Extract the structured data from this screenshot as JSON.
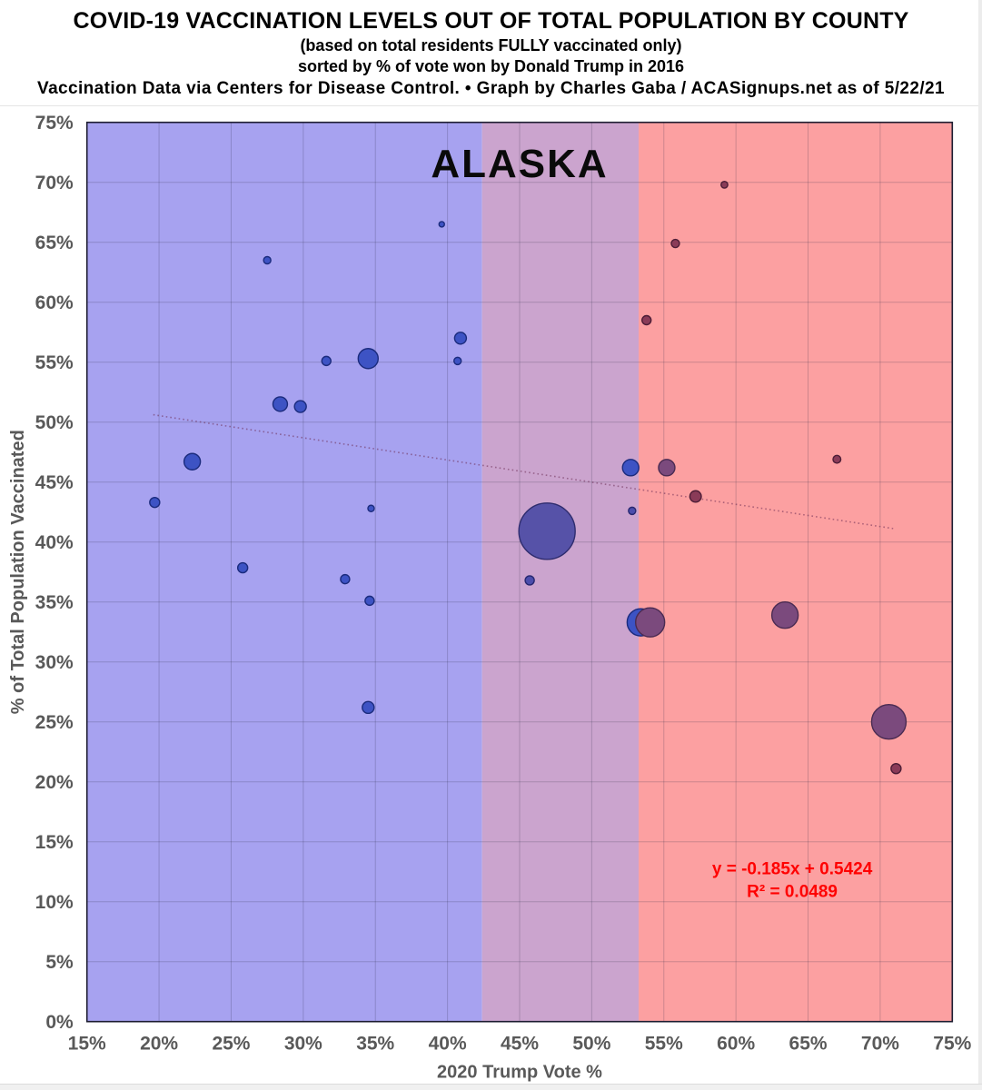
{
  "header": {
    "title": "COVID-19 VACCINATION LEVELS OUT OF TOTAL POPULATION BY COUNTY",
    "subtitle1": "(based on total residents FULLY vaccinated only)",
    "subtitle2": "sorted by % of vote won by Donald Trump in 2016",
    "credit": "Vaccination Data via Centers for Disease Control. • Graph by Charles Gaba / ACASignups.net as of 5/22/21"
  },
  "chart_data": {
    "type": "scatter",
    "title": "ALASKA",
    "xlabel": "2020 Trump Vote %",
    "ylabel": "% of Total Population Vaccinated",
    "xlim": [
      15,
      75
    ],
    "ylim": [
      0,
      75
    ],
    "grid": true,
    "tick_step": 5,
    "x_tick_labels": [
      "15%",
      "20%",
      "25%",
      "30%",
      "35%",
      "40%",
      "45%",
      "50%",
      "55%",
      "60%",
      "65%",
      "70%",
      "75%"
    ],
    "y_tick_labels": [
      "0%",
      "5%",
      "10%",
      "15%",
      "20%",
      "25%",
      "30%",
      "35%",
      "40%",
      "45%",
      "50%",
      "55%",
      "60%",
      "65%",
      "70%",
      "75%"
    ],
    "axis_label_color": "#595959",
    "gridline_color": "rgba(40,40,70,0.22)",
    "border_color": "#1c1c30",
    "bands": [
      {
        "name": "blue-lean",
        "from": 15,
        "to": 42.4,
        "color": "#A7A2F0"
      },
      {
        "name": "swing",
        "from": 42.4,
        "to": 53.25,
        "color": "#CBA4CE"
      },
      {
        "name": "red-lean",
        "from": 53.25,
        "to": 75,
        "color": "#FCA0A1"
      }
    ],
    "palette": {
      "blue": {
        "fill": "#3D53C4",
        "stroke": "#1B2B7D"
      },
      "indigo": {
        "fill": "#5652A8",
        "stroke": "#2E2C6E"
      },
      "indigoSmall": {
        "fill": "#4B4DAC",
        "stroke": "#26276F"
      },
      "plum": {
        "fill": "#7B4A7D",
        "stroke": "#4A2B52"
      },
      "maroon": {
        "fill": "#8A3B58",
        "stroke": "#4C1D36"
      }
    },
    "points": [
      {
        "x": 53.4,
        "y": 33.3,
        "r": 15,
        "c": "blue"
      },
      {
        "x": 54.05,
        "y": 33.3,
        "r": 16,
        "c": "plum"
      },
      {
        "x": 46.9,
        "y": 40.9,
        "r": 31,
        "c": "indigo"
      },
      {
        "x": 70.6,
        "y": 25.0,
        "r": 19,
        "c": "plum"
      },
      {
        "x": 63.4,
        "y": 33.9,
        "r": 14.5,
        "c": "plum"
      },
      {
        "x": 34.5,
        "y": 55.3,
        "r": 11,
        "c": "blue"
      },
      {
        "x": 22.3,
        "y": 46.7,
        "r": 9,
        "c": "blue"
      },
      {
        "x": 52.7,
        "y": 46.2,
        "r": 9,
        "c": "blue"
      },
      {
        "x": 55.2,
        "y": 46.2,
        "r": 9,
        "c": "plum"
      },
      {
        "x": 28.4,
        "y": 51.5,
        "r": 8,
        "c": "blue"
      },
      {
        "x": 29.8,
        "y": 51.3,
        "r": 6.5,
        "c": "blue"
      },
      {
        "x": 40.9,
        "y": 57.0,
        "r": 6.5,
        "c": "blue"
      },
      {
        "x": 34.5,
        "y": 26.2,
        "r": 6.5,
        "c": "blue"
      },
      {
        "x": 57.2,
        "y": 43.8,
        "r": 6.3,
        "c": "maroon"
      },
      {
        "x": 19.7,
        "y": 43.3,
        "r": 5.5,
        "c": "blue"
      },
      {
        "x": 25.8,
        "y": 37.85,
        "r": 5.5,
        "c": "blue"
      },
      {
        "x": 71.1,
        "y": 21.1,
        "r": 5.5,
        "c": "maroon"
      },
      {
        "x": 31.6,
        "y": 55.1,
        "r": 5,
        "c": "blue"
      },
      {
        "x": 32.9,
        "y": 36.9,
        "r": 5,
        "c": "blue"
      },
      {
        "x": 34.6,
        "y": 35.1,
        "r": 5,
        "c": "blue"
      },
      {
        "x": 45.7,
        "y": 36.8,
        "r": 5,
        "c": "indigoSmall"
      },
      {
        "x": 53.8,
        "y": 58.5,
        "r": 5,
        "c": "maroon"
      },
      {
        "x": 55.8,
        "y": 64.9,
        "r": 4.5,
        "c": "maroon"
      },
      {
        "x": 67.0,
        "y": 46.9,
        "r": 4.3,
        "c": "maroon"
      },
      {
        "x": 27.5,
        "y": 63.5,
        "r": 4,
        "c": "blue"
      },
      {
        "x": 40.7,
        "y": 55.1,
        "r": 4,
        "c": "blue"
      },
      {
        "x": 52.8,
        "y": 42.6,
        "r": 4,
        "c": "indigoSmall"
      },
      {
        "x": 59.2,
        "y": 69.8,
        "r": 3.7,
        "c": "maroon"
      },
      {
        "x": 34.7,
        "y": 42.8,
        "r": 3.5,
        "c": "blue"
      },
      {
        "x": 39.6,
        "y": 66.5,
        "r": 3,
        "c": "blue"
      }
    ],
    "trendline": {
      "slope": -0.185,
      "intercept": 0.5424,
      "x_start": 19.6,
      "x_end": 70.9,
      "color": "rgba(110,45,85,0.55)"
    },
    "annotation": {
      "equation": "y = -0.185x + 0.5424",
      "r_squared": "R² = 0.0489",
      "color": "#FF0000",
      "x": 63.9,
      "y_line1": 12.3,
      "y_line2": 10.4
    }
  }
}
